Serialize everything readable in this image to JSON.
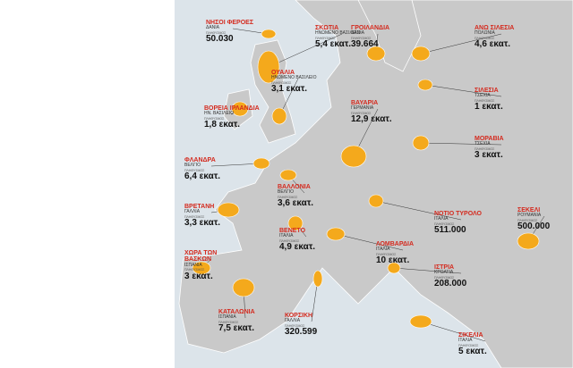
{
  "population_label": "ΠΛΗΘΥΣΜΟΣ",
  "regions": [
    {
      "name": "ΝΗΣΟΙ ΦΕΡΟΕΣ",
      "country": "ΔΑΝΙΑ",
      "population": "50.030"
    },
    {
      "name": "ΒΟΡΕΙΑ ΙΡΛΑΝΔΙΑ",
      "country": "ΗΝ. ΒΑΣΙΛΕΙΟ",
      "population": "1,8 εκατ."
    },
    {
      "name": "ΣΚΩΤΙΑ",
      "country": "ΗΝΩΜΕΝΟ ΒΑΣΙΛΕΙΟ",
      "population": "5,4 εκατ."
    },
    {
      "name": "ΟΥΑΛΙΑ",
      "country": "ΗΝΩΜΕΝΟ ΒΑΣΙΛΕΙΟ",
      "population": "3,1 εκατ."
    },
    {
      "name": "ΦΛΑΝΔΡΑ",
      "country": "ΒΕΛΓΙΟ",
      "population": "6,4 εκατ."
    },
    {
      "name": "ΒΡΕΤΑΝΗ",
      "country": "ΓΑΛΛΙΑ",
      "population": "3,3 εκατ."
    },
    {
      "name": "ΧΩΡΑ ΤΩΝ ΒΑΣΚΩΝ",
      "country": "ΙΣΠΑΝΙΑ",
      "population": "3 εκατ."
    },
    {
      "name": "ΚΑΤΑΛΩΝΙΑ",
      "country": "ΙΣΠΑΝΙΑ",
      "population": "7,5 εκατ."
    },
    {
      "name": "ΒΑΛΛΟΝΙΑ",
      "country": "ΒΕΛΓΙΟ",
      "population": "3,6 εκατ."
    },
    {
      "name": "ΒΕΝΕΤΟ",
      "country": "ΙΤΑΛΙΑ",
      "population": "4,9 εκατ."
    },
    {
      "name": "ΚΟΡΣΙΚΗ",
      "country": "ΓΑΛΛΙΑ",
      "population": "320.599"
    },
    {
      "name": "ΓΡΟΙΛΑΝΔΙΑ",
      "country": "ΔΑΝΙΑ",
      "population": "39.664"
    },
    {
      "name": "ΒΑΥΑΡΙΑ",
      "country": "ΓΕΡΜΑΝΙΑ",
      "population": "12,9 εκατ."
    },
    {
      "name": "ΛΟΜΒΑΡΔΙΑ",
      "country": "ΙΤΑΛΙΑ",
      "population": "10 εκατ."
    },
    {
      "name": "ΑΝΩ ΣΙΛΕΣΙΑ",
      "country": "ΠΟΛΩΝΙΑ",
      "population": "4,6 εκατ."
    },
    {
      "name": "ΣΙΛΕΣΙΑ",
      "country": "ΤΣΕΧΙΑ",
      "population": "1 εκατ."
    },
    {
      "name": "ΜΟΡΑΒΙΑ",
      "country": "ΤΣΕΧΙΑ",
      "population": "3 εκατ."
    },
    {
      "name": "ΣΕΚΕΛΙ",
      "country": "ΡΟΥΜΑΝΙΑ",
      "population": "500.000"
    },
    {
      "name": "ΝΟΤΙΟ ΤΥΡΟΛΟ",
      "country": "ΙΤΑΛΙΑ",
      "population": "511.000"
    },
    {
      "name": "ΙΣΤΡΙΑ",
      "country": "ΚΡΟΑΤΙΑ",
      "population": "208.000"
    },
    {
      "name": "ΣΙΚΕΛΙΑ",
      "country": "ΙΤΑΛΙΑ",
      "population": "5 εκατ."
    }
  ]
}
